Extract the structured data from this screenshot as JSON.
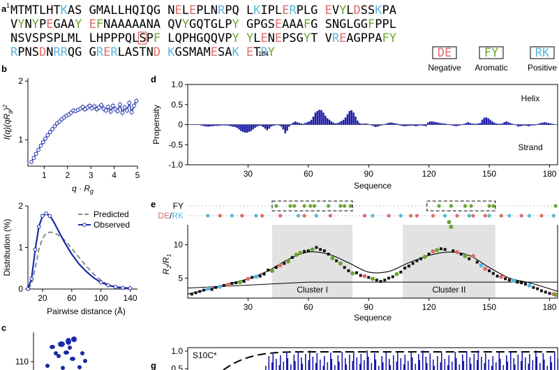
{
  "colors": {
    "negative": "#e06c6c",
    "aromatic": "#6aa531",
    "positive": "#5bb8df",
    "neutral": "#000000",
    "bar": "#1a1aa8",
    "observed": "#1a2aa8",
    "predicted": "#8a8a8a",
    "cluster": "#e2e2e2",
    "dots": "#c0c0c0"
  },
  "panel_a": {
    "label": "a",
    "start_index": "1",
    "end_index": "184",
    "lines": [
      "MTMTLHTKAS GMALLHQIQG NELEPLNRPQ LKIPLERPLG EVYLDSSKPA",
      "VYNYPEGAAY EFNAAAAANA QVYGQTGLPY GPGSEAAAFG SNGLGGFPPL",
      "NSVSPSPLML LHPPPQLSPF LQPHGQQVPY YLENEPSGYT VREAGPPAFY",
      "RPNSDNRRQG GRERLASTND KGSMAMESAK ETRY"
    ],
    "boxed_residue": "S",
    "legend": [
      {
        "code": "DE",
        "label": "Negative"
      },
      {
        "code": "FY",
        "label": "Aromatic"
      },
      {
        "code": "RK",
        "label": "Positive"
      }
    ]
  },
  "panel_b": {
    "label": "b",
    "top_xlabel": "q · R",
    "top_xlabel_sub": "g",
    "top_ylabel": "I(q)(qR",
    "top_ylabel_sub": "g",
    "top_ylabel_tail": ")",
    "top_ylabel_sup": "2",
    "bottom_xlabel": "Pairwise distance (Å)",
    "bottom_ylabel": "Distribution (%)",
    "legend_predicted": "Predicted",
    "legend_observed": "Observed"
  },
  "panel_c": {
    "label": "c",
    "y_tick": "110"
  },
  "panel_d": {
    "label": "d",
    "helix": "Helix",
    "strand": "Strand",
    "ylabel": "Propensity",
    "xlabel": "Sequence"
  },
  "panel_e": {
    "label": "e",
    "fy_label": "FY",
    "de_label": "DE",
    "rk_label": "RK",
    "slash": "/",
    "ylabel": "R",
    "ylabel_sub1": "2",
    "ylabel_mid": "/R",
    "ylabel_sub2": "1",
    "xlabel": "Sequence",
    "cluster1": "Cluster I",
    "cluster2": "Cluster II"
  },
  "panel_g": {
    "label": "g",
    "name": "S10C*",
    "ticks": [
      "1.0",
      "0.5"
    ]
  },
  "chart_data": [
    {
      "panel": "b-top",
      "type": "scatter",
      "xlabel": "q · Rg",
      "ylabel": "I(q)(qRg)^2",
      "xlim": [
        0.3,
        5
      ],
      "ylim": [
        0.55,
        2.05
      ],
      "xticks": [
        1,
        2,
        3,
        4,
        5
      ],
      "yticks": [
        1,
        2
      ],
      "x": [
        0.45,
        0.55,
        0.65,
        0.75,
        0.85,
        0.95,
        1.05,
        1.15,
        1.25,
        1.35,
        1.45,
        1.55,
        1.65,
        1.75,
        1.85,
        1.95,
        2.05,
        2.15,
        2.25,
        2.35,
        2.45,
        2.55,
        2.65,
        2.75,
        2.85,
        2.95,
        3.05,
        3.15,
        3.25,
        3.35,
        3.45,
        3.55,
        3.65,
        3.75,
        3.85,
        3.95,
        4.05,
        4.15,
        4.25,
        4.35,
        4.45,
        4.55,
        4.65,
        4.75,
        4.85,
        4.95
      ],
      "y": [
        0.62,
        0.69,
        0.76,
        0.83,
        0.9,
        0.96,
        1.02,
        1.08,
        1.13,
        1.18,
        1.23,
        1.28,
        1.31,
        1.35,
        1.38,
        1.41,
        1.43,
        1.46,
        1.5,
        1.49,
        1.51,
        1.53,
        1.56,
        1.52,
        1.55,
        1.58,
        1.54,
        1.57,
        1.52,
        1.55,
        1.59,
        1.53,
        1.5,
        1.56,
        1.48,
        1.58,
        1.52,
        1.49,
        1.6,
        1.46,
        1.55,
        1.5,
        1.63,
        1.47,
        1.58,
        1.66
      ]
    },
    {
      "panel": "b-bottom",
      "type": "line",
      "xlabel": "Pairwise distance (Å)",
      "ylabel": "Distribution (%)",
      "xlim": [
        0,
        150
      ],
      "ylim": [
        0,
        2
      ],
      "xticks": [
        20,
        60,
        100,
        140
      ],
      "yticks": [
        0,
        1,
        2
      ],
      "series": [
        {
          "name": "Predicted",
          "style": "dashed",
          "x": [
            0,
            5,
            10,
            15,
            20,
            25,
            30,
            35,
            40,
            50,
            60,
            70,
            80,
            90,
            100,
            110,
            120,
            130,
            140
          ],
          "y": [
            0,
            0.12,
            0.5,
            0.95,
            1.22,
            1.34,
            1.37,
            1.36,
            1.32,
            1.18,
            0.98,
            0.76,
            0.55,
            0.36,
            0.21,
            0.1,
            0.04,
            0.01,
            0
          ]
        },
        {
          "name": "Observed",
          "style": "line-markers",
          "x": [
            0,
            5,
            10,
            15,
            20,
            25,
            30,
            35,
            40,
            50,
            60,
            70,
            80,
            90,
            100,
            110,
            120,
            130,
            140
          ],
          "y": [
            0,
            0.25,
            0.95,
            1.5,
            1.76,
            1.82,
            1.76,
            1.63,
            1.46,
            1.13,
            0.84,
            0.6,
            0.42,
            0.27,
            0.16,
            0.09,
            0.05,
            0.03,
            0.02
          ]
        }
      ]
    },
    {
      "panel": "d",
      "type": "bar",
      "xlabel": "Sequence",
      "ylabel": "Propensity",
      "xlim": [
        0,
        184
      ],
      "ylim": [
        -1,
        1
      ],
      "xticks": [
        30,
        60,
        90,
        120,
        150,
        180
      ],
      "yticks": [
        -1.0,
        -0.5,
        0,
        0.5,
        1.0
      ],
      "values": [
        0,
        0,
        0,
        0,
        0,
        0,
        -0.02,
        -0.03,
        -0.04,
        -0.05,
        -0.05,
        -0.04,
        -0.04,
        -0.03,
        -0.03,
        -0.03,
        -0.02,
        -0.02,
        -0.02,
        -0.02,
        -0.03,
        -0.04,
        -0.05,
        -0.06,
        -0.08,
        -0.12,
        -0.16,
        -0.18,
        -0.2,
        -0.2,
        -0.18,
        -0.16,
        -0.12,
        -0.08,
        -0.05,
        -0.03,
        -0.03,
        -0.06,
        -0.1,
        -0.14,
        -0.1,
        -0.05,
        -0.03,
        -0.02,
        -0.01,
        -0.02,
        -0.05,
        -0.12,
        -0.22,
        -0.15,
        -0.05,
        0.02,
        0.05,
        0.08,
        0.06,
        0.04,
        0.03,
        0.02,
        0.04,
        0.06,
        0.08,
        0.12,
        0.2,
        0.3,
        0.34,
        0.37,
        0.36,
        0.3,
        0.22,
        0.16,
        0.12,
        0.08,
        0.05,
        0.03,
        0.04,
        0.06,
        0.09,
        0.12,
        0.18,
        0.26,
        0.34,
        0.36,
        0.3,
        0.2,
        0.1,
        0.04,
        0.02,
        0.02,
        0.03,
        0.02,
        0.01,
        -0.02,
        -0.04,
        -0.06,
        -0.05,
        -0.03,
        -0.02,
        -0.01,
        0.02,
        0.04,
        0.05,
        0.05,
        0.04,
        0.03,
        0.02,
        -0.02,
        -0.03,
        -0.04,
        -0.04,
        -0.03,
        -0.03,
        -0.02,
        -0.03,
        -0.04,
        -0.03,
        -0.02,
        -0.02,
        -0.03,
        -0.04,
        0.05,
        0.08,
        0.08,
        0.07,
        0.06,
        0.05,
        0.04,
        0.03,
        0.03,
        0.02,
        0.01,
        -0.01,
        -0.02,
        -0.03,
        -0.04,
        -0.03,
        -0.02,
        -0.01,
        0.02,
        0.04,
        0.06,
        0.04,
        0.03,
        0.02,
        0.02,
        0.03,
        0.04,
        0.12,
        0.17,
        0.18,
        0.16,
        0.12,
        0.08,
        0.05,
        0.03,
        0.02,
        0.02,
        0.03,
        0.06,
        0.08,
        0.06,
        0.04,
        0.02,
        0.01,
        -0.02,
        -0.05,
        -0.04,
        -0.03,
        -0.02,
        -0.03,
        -0.04,
        -0.03,
        -0.02,
        -0.02,
        -0.01,
        0.02,
        0.04,
        0.05,
        0.06,
        0.05,
        0.04,
        0.03,
        0.02,
        0.01
      ]
    },
    {
      "panel": "e",
      "type": "scatter",
      "xlabel": "Sequence",
      "ylabel": "R2/R1",
      "xlim": [
        0,
        184
      ],
      "ylim": [
        2,
        13
      ],
      "xticks": [
        30,
        60,
        90,
        120,
        150,
        180
      ],
      "yticks": [
        5,
        10
      ],
      "cluster_ranges": [
        [
          42,
          82
        ],
        [
          107,
          153
        ]
      ],
      "baseline": [
        [
          0,
          3.5
        ],
        [
          60,
          4.4
        ],
        [
          184,
          4.4
        ]
      ],
      "fit_x": [
        0,
        10,
        20,
        30,
        40,
        50,
        60,
        70,
        80,
        90,
        100,
        110,
        120,
        130,
        140,
        150,
        160,
        170,
        180,
        184
      ],
      "fit_y": [
        2.6,
        3.3,
        4.1,
        4.9,
        6.1,
        7.8,
        8.9,
        8.6,
        7.3,
        5.9,
        6.0,
        7.3,
        8.4,
        8.9,
        8.4,
        6.6,
        5.0,
        4.3,
        3.4,
        3.0
      ],
      "points": [
        [
          2,
          2.6,
          "n"
        ],
        [
          4,
          2.8,
          "n"
        ],
        [
          6,
          3.0,
          "n"
        ],
        [
          8,
          3.2,
          "n"
        ],
        [
          10,
          3.4,
          "b"
        ],
        [
          12,
          3.3,
          "n"
        ],
        [
          14,
          3.6,
          "n"
        ],
        [
          16,
          3.7,
          "b"
        ],
        [
          18,
          3.9,
          "n"
        ],
        [
          20,
          4.0,
          "r"
        ],
        [
          22,
          4.2,
          "n"
        ],
        [
          24,
          4.3,
          "n"
        ],
        [
          26,
          4.4,
          "g"
        ],
        [
          28,
          4.5,
          "n"
        ],
        [
          30,
          4.9,
          "r"
        ],
        [
          32,
          5.1,
          "n"
        ],
        [
          34,
          5.2,
          "b"
        ],
        [
          36,
          5.3,
          "n"
        ],
        [
          38,
          5.6,
          "n"
        ],
        [
          40,
          6.2,
          "n"
        ],
        [
          42,
          6.1,
          "g"
        ],
        [
          44,
          6.6,
          "n"
        ],
        [
          46,
          6.9,
          "r"
        ],
        [
          48,
          7.2,
          "n"
        ],
        [
          50,
          7.5,
          "g"
        ],
        [
          52,
          8.1,
          "n"
        ],
        [
          54,
          8.5,
          "g"
        ],
        [
          56,
          8.8,
          "g"
        ],
        [
          58,
          9.0,
          "n"
        ],
        [
          60,
          9.1,
          "n"
        ],
        [
          62,
          9.3,
          "g"
        ],
        [
          64,
          9.6,
          "n"
        ],
        [
          66,
          9.3,
          "n"
        ],
        [
          68,
          9.1,
          "n"
        ],
        [
          70,
          8.6,
          "n"
        ],
        [
          72,
          8.0,
          "g"
        ],
        [
          74,
          7.6,
          "n"
        ],
        [
          76,
          7.2,
          "g"
        ],
        [
          78,
          6.6,
          "n"
        ],
        [
          80,
          6.1,
          "n"
        ],
        [
          82,
          5.7,
          "g"
        ],
        [
          84,
          5.8,
          "n"
        ],
        [
          86,
          5.4,
          "n"
        ],
        [
          88,
          5.3,
          "r"
        ],
        [
          90,
          5.1,
          "n"
        ],
        [
          92,
          4.9,
          "g"
        ],
        [
          94,
          4.7,
          "n"
        ],
        [
          96,
          4.5,
          "n"
        ],
        [
          98,
          4.7,
          "n"
        ],
        [
          100,
          5.0,
          "n"
        ],
        [
          102,
          5.2,
          "n"
        ],
        [
          104,
          5.6,
          "g"
        ],
        [
          106,
          5.9,
          "n"
        ],
        [
          108,
          6.5,
          "n"
        ],
        [
          110,
          6.8,
          "n"
        ],
        [
          112,
          7.2,
          "n"
        ],
        [
          114,
          7.6,
          "n"
        ],
        [
          116,
          7.9,
          "n"
        ],
        [
          118,
          8.2,
          "g"
        ],
        [
          120,
          8.6,
          "n"
        ],
        [
          122,
          9.0,
          "r"
        ],
        [
          124,
          9.2,
          "g"
        ],
        [
          126,
          9.4,
          "n"
        ],
        [
          128,
          9.3,
          "n"
        ],
        [
          130,
          13.4,
          "g"
        ],
        [
          131,
          12.7,
          "g"
        ],
        [
          132,
          9.1,
          "n"
        ],
        [
          134,
          8.9,
          "r"
        ],
        [
          136,
          8.6,
          "n"
        ],
        [
          138,
          8.3,
          "g"
        ],
        [
          140,
          7.9,
          "n"
        ],
        [
          142,
          8.3,
          "r"
        ],
        [
          144,
          7.4,
          "n"
        ],
        [
          146,
          6.9,
          "b"
        ],
        [
          148,
          6.4,
          "r"
        ],
        [
          150,
          6.1,
          "n"
        ],
        [
          152,
          5.7,
          "n"
        ],
        [
          154,
          5.3,
          "n"
        ],
        [
          156,
          5.2,
          "r"
        ],
        [
          158,
          4.9,
          "n"
        ],
        [
          160,
          4.7,
          "n"
        ],
        [
          162,
          4.6,
          "b"
        ],
        [
          164,
          4.4,
          "n"
        ],
        [
          166,
          4.3,
          "n"
        ],
        [
          168,
          4.1,
          "n"
        ],
        [
          170,
          3.9,
          "b"
        ],
        [
          172,
          3.6,
          "n"
        ],
        [
          174,
          3.4,
          "n"
        ],
        [
          176,
          3.1,
          "n"
        ],
        [
          178,
          2.9,
          "n"
        ],
        [
          180,
          2.7,
          "n"
        ],
        [
          182,
          2.6,
          "r"
        ],
        [
          183,
          2.5,
          "g"
        ]
      ]
    }
  ]
}
